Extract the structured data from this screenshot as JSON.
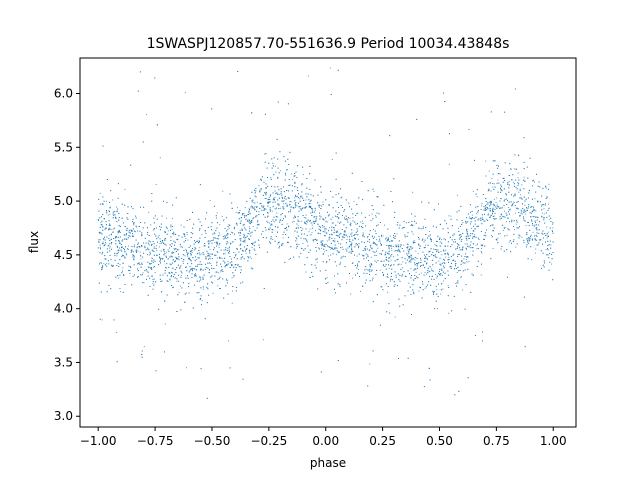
{
  "chart_data": {
    "type": "scatter",
    "title": "1SWASPJ120857.70-551636.9 Period 10034.43848s",
    "xlabel": "phase",
    "ylabel": "flux",
    "xlim": [
      -1.08,
      1.1
    ],
    "ylim": [
      2.9,
      6.33
    ],
    "xticks": [
      -1.0,
      -0.75,
      -0.5,
      -0.25,
      0.0,
      0.25,
      0.5,
      0.75,
      1.0
    ],
    "xtick_labels": [
      "−1.00",
      "−0.75",
      "−0.50",
      "−0.25",
      "0.00",
      "0.25",
      "0.50",
      "0.75",
      "1.00"
    ],
    "yticks": [
      3.0,
      3.5,
      4.0,
      4.5,
      5.0,
      5.5,
      6.0
    ],
    "ytick_labels": [
      "3.0",
      "3.5",
      "4.0",
      "4.5",
      "5.0",
      "5.5",
      "6.0"
    ],
    "grid": false,
    "legend": "none",
    "series_color": "#1f77b4",
    "phase_range": [
      -1.0,
      1.0
    ],
    "mean_flux_profile": {
      "phase": [
        -1.0,
        -0.9,
        -0.8,
        -0.7,
        -0.6,
        -0.5,
        -0.4,
        -0.32,
        -0.25,
        -0.18,
        -0.1,
        0.0,
        0.1,
        0.2,
        0.3,
        0.4,
        0.5,
        0.6,
        0.68,
        0.75,
        0.82,
        0.9,
        1.0
      ],
      "flux": [
        4.68,
        4.62,
        4.55,
        4.51,
        4.48,
        4.46,
        4.54,
        4.8,
        4.98,
        4.96,
        4.85,
        4.68,
        4.62,
        4.55,
        4.51,
        4.48,
        4.46,
        4.54,
        4.8,
        4.98,
        4.96,
        4.85,
        4.68
      ]
    },
    "scatter_sigma": 0.2,
    "point_count": 6000
  }
}
